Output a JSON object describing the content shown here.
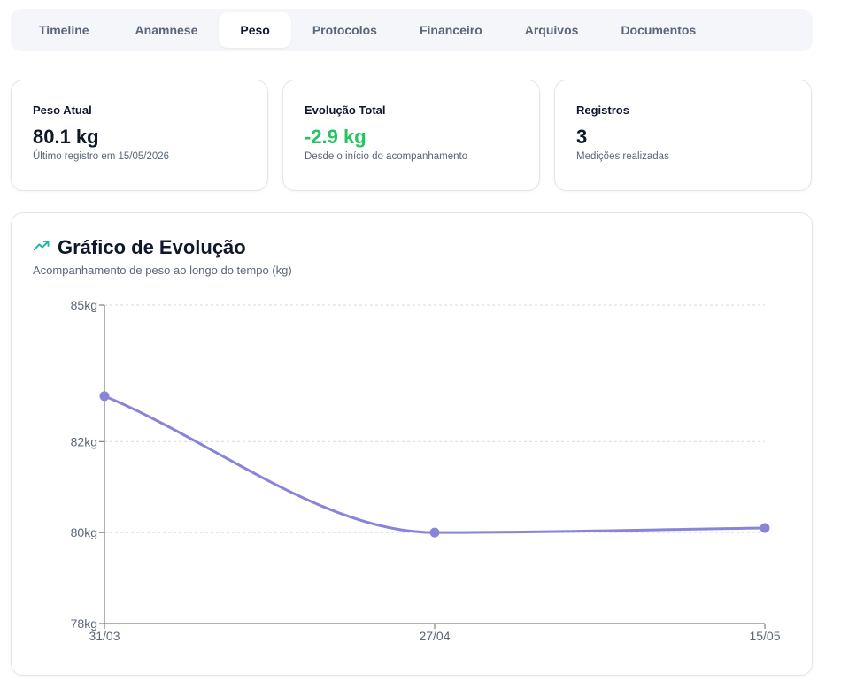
{
  "tabs": [
    {
      "label": "Timeline",
      "active": false
    },
    {
      "label": "Anamnese",
      "active": false
    },
    {
      "label": "Peso",
      "active": true
    },
    {
      "label": "Protocolos",
      "active": false
    },
    {
      "label": "Financeiro",
      "active": false
    },
    {
      "label": "Arquivos",
      "active": false
    },
    {
      "label": "Documentos",
      "active": false
    }
  ],
  "stats": {
    "current": {
      "label": "Peso Atual",
      "value": "80.1 kg",
      "sub": "Último registro em 15/05/2026"
    },
    "evolution": {
      "label": "Evolução Total",
      "value": "-2.9 kg",
      "sub": "Desde o início do acompanhamento",
      "color": "#22c55e"
    },
    "records": {
      "label": "Registros",
      "value": "3",
      "sub": "Medições realizadas"
    }
  },
  "chart": {
    "title": "Gráfico de Evolução",
    "subtitle": "Acompanhamento de peso ao longo do tempo (kg)",
    "icon": "trending-up-icon",
    "accent": "#8884d8",
    "icon_color": "#14b8a6"
  },
  "chart_data": {
    "type": "line",
    "categories": [
      "31/03",
      "27/04",
      "15/05"
    ],
    "values": [
      83,
      80,
      80.1
    ],
    "y_ticks": [
      "85kg",
      "82kg",
      "80kg",
      "78kg"
    ],
    "y_tick_values": [
      85,
      82,
      80,
      78
    ],
    "ylim": [
      78,
      85
    ],
    "grid": true,
    "xlabel": "",
    "ylabel": ""
  }
}
